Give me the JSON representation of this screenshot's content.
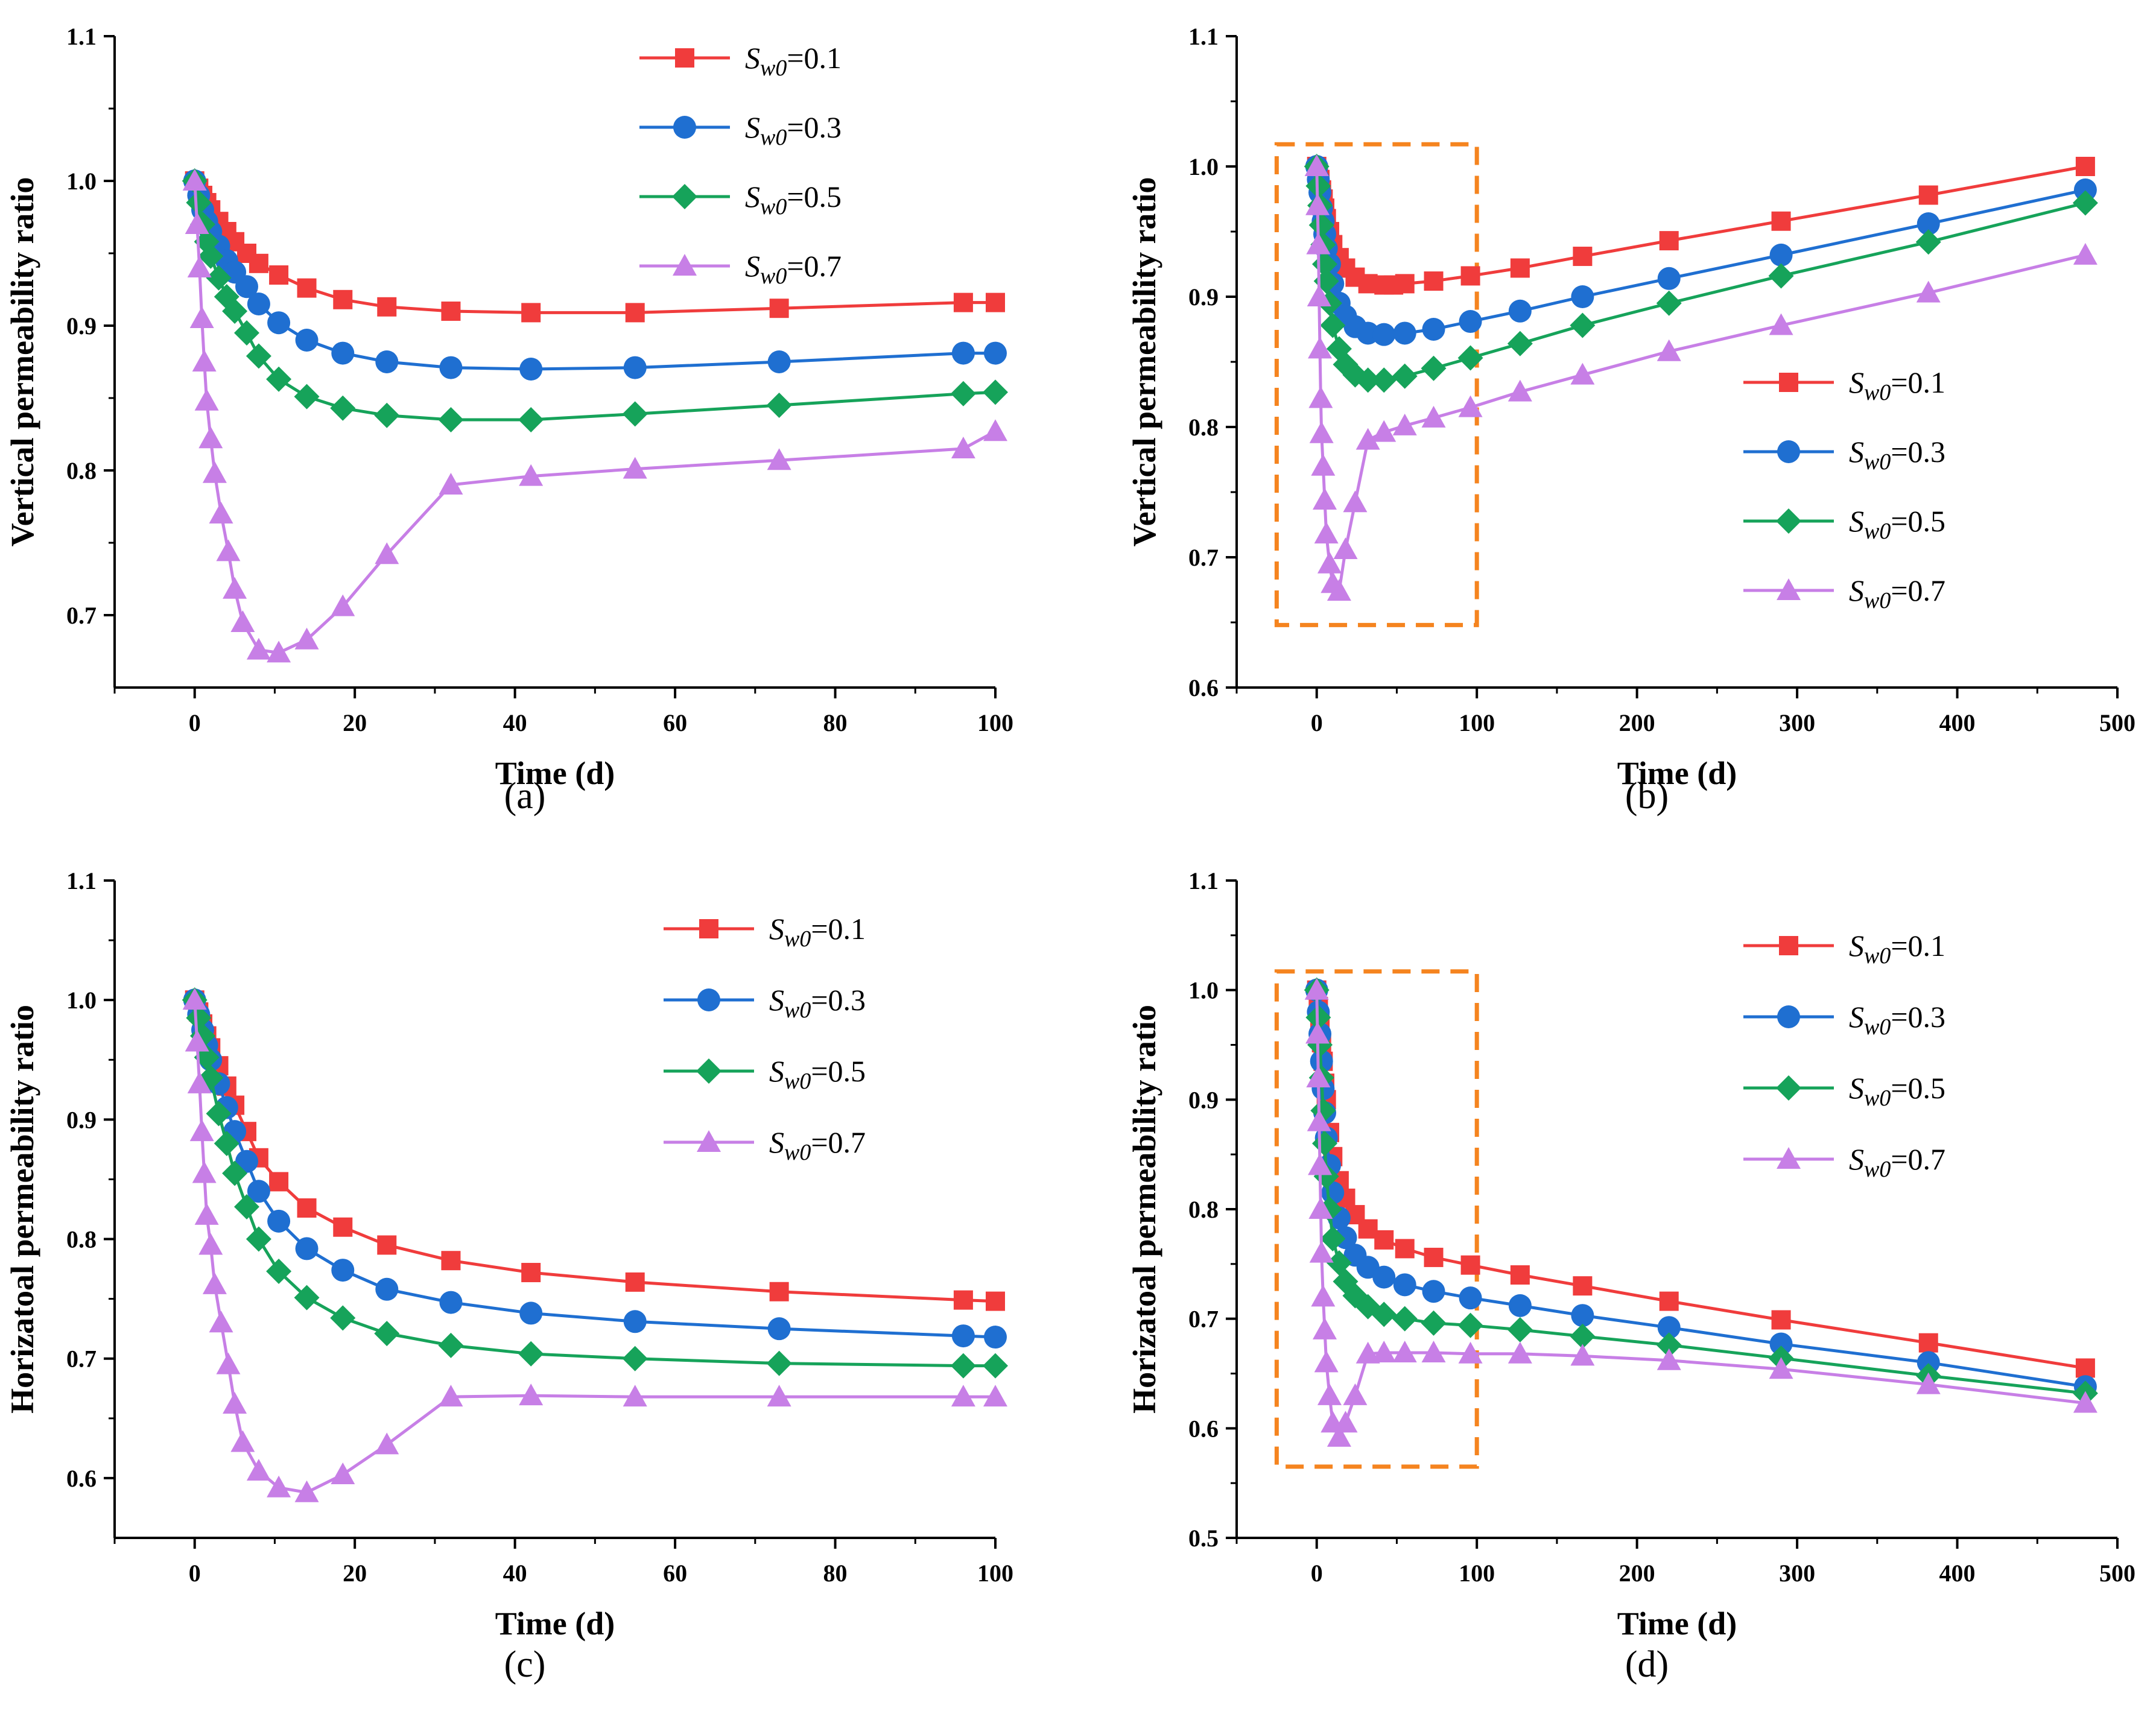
{
  "figure": {
    "series_styles": [
      {
        "name": "Sw0=0.1",
        "color": "#f03c3c",
        "marker": "square-marker"
      },
      {
        "name": "Sw0=0.3",
        "color": "#1f6fd1",
        "marker": "circle-marker"
      },
      {
        "name": "Sw0=0.5",
        "color": "#16a35a",
        "marker": "diamond-marker"
      },
      {
        "name": "Sw0=0.7",
        "color": "#c77fe6",
        "marker": "triangle-marker"
      }
    ],
    "legend_symbol": "S",
    "legend_subscript": "w0",
    "highlight_color": "#f5841f"
  },
  "chart_data": [
    {
      "type": "line",
      "panel_label": "(a)",
      "xlabel": "Time (d)",
      "ylabel": "Vertical permeability ratio",
      "xlim": [
        -10,
        100
      ],
      "ylim": [
        0.65,
        1.1
      ],
      "xticks": [
        0,
        20,
        40,
        60,
        80,
        100
      ],
      "yticks": [
        0.7,
        0.8,
        0.9,
        1.0,
        1.1
      ],
      "ytick_labels": [
        "0.7",
        "0.8",
        "0.9",
        "1.0",
        "1.1"
      ],
      "legend": [
        "=0.1",
        "=0.3",
        "=0.5",
        "=0.7"
      ],
      "legend_position": "top-right",
      "series": [
        {
          "name": "Sw0=0.1",
          "x": [
            0,
            0.5,
            1,
            1.5,
            2,
            3,
            4,
            5,
            6.5,
            8,
            10.5,
            14,
            18.5,
            24,
            32,
            42,
            55,
            73,
            96,
            100
          ],
          "y": [
            1.0,
            0.995,
            0.99,
            0.985,
            0.98,
            0.972,
            0.965,
            0.958,
            0.95,
            0.943,
            0.935,
            0.926,
            0.918,
            0.913,
            0.91,
            0.909,
            0.909,
            0.912,
            0.916,
            0.916
          ]
        },
        {
          "name": "Sw0=0.3",
          "x": [
            0,
            0.5,
            1,
            1.5,
            2,
            3,
            4,
            5,
            6.5,
            8,
            10.5,
            14,
            18.5,
            24,
            32,
            42,
            55,
            73,
            96,
            100
          ],
          "y": [
            1.0,
            0.99,
            0.98,
            0.972,
            0.965,
            0.955,
            0.945,
            0.937,
            0.927,
            0.915,
            0.902,
            0.89,
            0.881,
            0.875,
            0.871,
            0.87,
            0.871,
            0.875,
            0.881,
            0.881
          ]
        },
        {
          "name": "Sw0=0.5",
          "x": [
            0,
            0.5,
            1,
            1.5,
            2,
            3,
            4,
            5,
            6.5,
            8,
            10.5,
            14,
            18.5,
            24,
            32,
            42,
            55,
            73,
            96,
            100
          ],
          "y": [
            1.0,
            0.985,
            0.97,
            0.958,
            0.948,
            0.933,
            0.92,
            0.91,
            0.895,
            0.879,
            0.863,
            0.851,
            0.843,
            0.838,
            0.835,
            0.835,
            0.839,
            0.845,
            0.853,
            0.854
          ]
        },
        {
          "name": "Sw0=0.7",
          "x": [
            0,
            0.3,
            0.6,
            0.9,
            1.2,
            1.5,
            2,
            2.5,
            3.3,
            4.2,
            5,
            6,
            8,
            10.5,
            14,
            18.5,
            24,
            32,
            42,
            55,
            73,
            96,
            100
          ],
          "y": [
            1.0,
            0.97,
            0.94,
            0.905,
            0.875,
            0.848,
            0.822,
            0.798,
            0.77,
            0.744,
            0.718,
            0.695,
            0.676,
            0.674,
            0.683,
            0.706,
            0.742,
            0.79,
            0.796,
            0.801,
            0.807,
            0.815,
            0.827
          ]
        }
      ]
    },
    {
      "type": "line",
      "panel_label": "(b)",
      "xlabel": "Time (d)",
      "ylabel": "Vertical permeability ratio",
      "xlim": [
        -50,
        500
      ],
      "ylim": [
        0.6,
        1.1
      ],
      "xticks": [
        0,
        100,
        200,
        300,
        400,
        500
      ],
      "yticks": [
        0.6,
        0.7,
        0.8,
        0.9,
        1.0,
        1.1
      ],
      "ytick_labels": [
        "0.6",
        "0.7",
        "0.8",
        "0.9",
        "1.0",
        "1.1"
      ],
      "legend": [
        "=0.1",
        "=0.3",
        "=0.5",
        "=0.7"
      ],
      "legend_position": "center-right",
      "highlight_box": {
        "x": [
          -25,
          100
        ],
        "y": [
          0.648,
          1.017
        ]
      },
      "series": [
        {
          "name": "Sw0=0.1",
          "x": [
            0,
            1,
            2,
            3,
            4,
            5,
            6,
            8,
            10,
            14,
            18,
            24,
            32,
            42,
            48,
            55,
            73,
            96,
            127,
            166,
            220,
            290,
            382,
            480
          ],
          "y": [
            1.0,
            0.995,
            0.99,
            0.982,
            0.975,
            0.968,
            0.96,
            0.95,
            0.94,
            0.93,
            0.922,
            0.915,
            0.91,
            0.909,
            0.909,
            0.91,
            0.912,
            0.916,
            0.922,
            0.931,
            0.943,
            0.958,
            0.978,
            1.0
          ]
        },
        {
          "name": "Sw0=0.3",
          "x": [
            0,
            1,
            2,
            3,
            4,
            5,
            6,
            8,
            10,
            14,
            18,
            24,
            32,
            42,
            55,
            73,
            96,
            127,
            166,
            220,
            290,
            382,
            480
          ],
          "y": [
            1.0,
            0.99,
            0.98,
            0.968,
            0.958,
            0.948,
            0.937,
            0.925,
            0.91,
            0.895,
            0.885,
            0.877,
            0.872,
            0.871,
            0.872,
            0.875,
            0.881,
            0.889,
            0.9,
            0.914,
            0.932,
            0.956,
            0.982
          ]
        },
        {
          "name": "Sw0=0.5",
          "x": [
            0,
            1,
            2,
            3,
            4,
            5,
            6,
            8,
            10,
            14,
            18,
            24,
            32,
            42,
            55,
            73,
            96,
            127,
            166,
            220,
            290,
            382,
            480
          ],
          "y": [
            1.0,
            0.985,
            0.97,
            0.955,
            0.94,
            0.925,
            0.912,
            0.895,
            0.878,
            0.86,
            0.848,
            0.84,
            0.836,
            0.836,
            0.839,
            0.845,
            0.853,
            0.864,
            0.878,
            0.895,
            0.916,
            0.942,
            0.972
          ]
        },
        {
          "name": "Sw0=0.7",
          "x": [
            0,
            0.5,
            1,
            1.5,
            2,
            2.5,
            3,
            4,
            5,
            6,
            8,
            10,
            14,
            18,
            24,
            32,
            42,
            55,
            73,
            96,
            127,
            166,
            220,
            290,
            382,
            480
          ],
          "y": [
            1.0,
            0.97,
            0.94,
            0.9,
            0.86,
            0.822,
            0.795,
            0.77,
            0.744,
            0.718,
            0.695,
            0.68,
            0.674,
            0.706,
            0.742,
            0.79,
            0.796,
            0.801,
            0.807,
            0.815,
            0.827,
            0.84,
            0.858,
            0.878,
            0.903,
            0.932
          ]
        }
      ]
    },
    {
      "type": "line",
      "panel_label": "(c)",
      "xlabel": "Time (d)",
      "ylabel": "Horizatoal permeability ratio",
      "xlim": [
        -10,
        100
      ],
      "ylim": [
        0.55,
        1.1
      ],
      "xticks": [
        0,
        20,
        40,
        60,
        80,
        100
      ],
      "yticks": [
        0.6,
        0.7,
        0.8,
        0.9,
        1.0,
        1.1
      ],
      "ytick_labels": [
        "0.6",
        "0.7",
        "0.8",
        "0.9",
        "1.0",
        "1.1"
      ],
      "legend": [
        "=0.1",
        "=0.3",
        "=0.5",
        "=0.7"
      ],
      "legend_position": "top-right",
      "series": [
        {
          "name": "Sw0=0.1",
          "x": [
            0,
            0.5,
            1,
            1.5,
            2,
            3,
            4,
            5,
            6.5,
            8,
            10.5,
            14,
            18.5,
            24,
            32,
            42,
            55,
            73,
            96,
            100
          ],
          "y": [
            1.0,
            0.99,
            0.98,
            0.97,
            0.96,
            0.945,
            0.928,
            0.912,
            0.89,
            0.868,
            0.848,
            0.826,
            0.81,
            0.795,
            0.782,
            0.772,
            0.764,
            0.756,
            0.749,
            0.748
          ]
        },
        {
          "name": "Sw0=0.3",
          "x": [
            0,
            0.5,
            1,
            1.5,
            2,
            3,
            4,
            5,
            6.5,
            8,
            10.5,
            14,
            18.5,
            24,
            32,
            42,
            55,
            73,
            96,
            100
          ],
          "y": [
            1.0,
            0.988,
            0.975,
            0.962,
            0.95,
            0.93,
            0.91,
            0.89,
            0.865,
            0.84,
            0.815,
            0.792,
            0.774,
            0.758,
            0.747,
            0.738,
            0.731,
            0.725,
            0.719,
            0.718
          ]
        },
        {
          "name": "Sw0=0.5",
          "x": [
            0,
            0.5,
            1,
            1.5,
            2,
            3,
            4,
            5,
            6.5,
            8,
            10.5,
            14,
            18.5,
            24,
            32,
            42,
            55,
            73,
            96,
            100
          ],
          "y": [
            1.0,
            0.985,
            0.97,
            0.952,
            0.935,
            0.905,
            0.88,
            0.855,
            0.827,
            0.8,
            0.773,
            0.751,
            0.734,
            0.721,
            0.711,
            0.704,
            0.7,
            0.696,
            0.694,
            0.694
          ]
        },
        {
          "name": "Sw0=0.7",
          "x": [
            0,
            0.3,
            0.6,
            0.9,
            1.2,
            1.5,
            2,
            2.5,
            3.3,
            4.2,
            5,
            6,
            8,
            10.5,
            14,
            18.5,
            24,
            32,
            42,
            55,
            73,
            96,
            100
          ],
          "y": [
            1.0,
            0.965,
            0.93,
            0.89,
            0.855,
            0.82,
            0.795,
            0.762,
            0.73,
            0.695,
            0.662,
            0.63,
            0.606,
            0.592,
            0.588,
            0.603,
            0.628,
            0.668,
            0.669,
            0.668,
            0.668,
            0.668,
            0.668
          ]
        }
      ]
    },
    {
      "type": "line",
      "panel_label": "(d)",
      "xlabel": "Time (d)",
      "ylabel": "Horizatoal permeability ratio",
      "xlim": [
        -50,
        500
      ],
      "ylim": [
        0.5,
        1.1
      ],
      "xticks": [
        0,
        100,
        200,
        300,
        400,
        500
      ],
      "yticks": [
        0.5,
        0.6,
        0.7,
        0.8,
        0.9,
        1.0,
        1.1
      ],
      "ytick_labels": [
        "0.5",
        "0.6",
        "0.7",
        "0.8",
        "0.9",
        "1.0",
        "1.1"
      ],
      "legend": [
        "=0.1",
        "=0.3",
        "=0.5",
        "=0.7"
      ],
      "legend_position": "top-right",
      "highlight_box": {
        "x": [
          -25,
          100
        ],
        "y": [
          0.565,
          1.017
        ]
      },
      "series": [
        {
          "name": "Sw0=0.1",
          "x": [
            0,
            1,
            2,
            3,
            4,
            5,
            6,
            8,
            10,
            14,
            18,
            24,
            32,
            42,
            55,
            73,
            96,
            127,
            166,
            220,
            290,
            382,
            480
          ],
          "y": [
            1.0,
            0.985,
            0.97,
            0.952,
            0.935,
            0.915,
            0.9,
            0.87,
            0.848,
            0.826,
            0.81,
            0.795,
            0.782,
            0.772,
            0.764,
            0.756,
            0.749,
            0.74,
            0.73,
            0.716,
            0.699,
            0.678,
            0.655
          ]
        },
        {
          "name": "Sw0=0.3",
          "x": [
            0,
            1,
            2,
            3,
            4,
            5,
            6,
            8,
            10,
            14,
            18,
            24,
            32,
            42,
            55,
            73,
            96,
            127,
            166,
            220,
            290,
            382,
            480
          ],
          "y": [
            1.0,
            0.98,
            0.96,
            0.935,
            0.91,
            0.888,
            0.865,
            0.84,
            0.815,
            0.792,
            0.774,
            0.758,
            0.747,
            0.738,
            0.731,
            0.725,
            0.719,
            0.712,
            0.703,
            0.692,
            0.677,
            0.66,
            0.638
          ]
        },
        {
          "name": "Sw0=0.5",
          "x": [
            0,
            1,
            2,
            3,
            4,
            5,
            6,
            8,
            10,
            14,
            18,
            24,
            32,
            42,
            55,
            73,
            96,
            127,
            166,
            220,
            290,
            382,
            480
          ],
          "y": [
            1.0,
            0.975,
            0.95,
            0.92,
            0.89,
            0.86,
            0.83,
            0.8,
            0.773,
            0.751,
            0.734,
            0.721,
            0.711,
            0.704,
            0.7,
            0.696,
            0.694,
            0.69,
            0.684,
            0.676,
            0.664,
            0.648,
            0.632
          ]
        },
        {
          "name": "Sw0=0.7",
          "x": [
            0,
            0.5,
            1,
            1.5,
            2,
            2.5,
            3,
            4,
            5,
            6,
            8,
            10,
            14,
            18,
            24,
            32,
            42,
            55,
            73,
            96,
            127,
            166,
            220,
            290,
            382,
            480
          ],
          "y": [
            1.0,
            0.96,
            0.92,
            0.88,
            0.84,
            0.8,
            0.76,
            0.72,
            0.69,
            0.66,
            0.63,
            0.605,
            0.592,
            0.605,
            0.63,
            0.668,
            0.669,
            0.669,
            0.669,
            0.668,
            0.668,
            0.666,
            0.662,
            0.654,
            0.64,
            0.623
          ]
        }
      ]
    }
  ]
}
